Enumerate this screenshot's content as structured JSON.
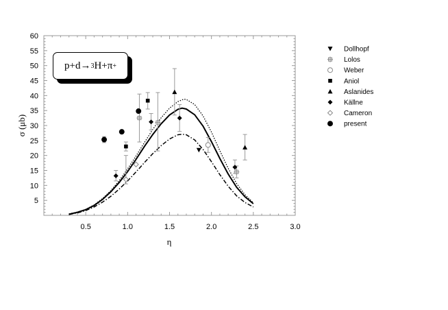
{
  "reaction": {
    "lhs": "p+d",
    "arrow": "→",
    "mass_number": "3",
    "product": "H+π",
    "charge": "+"
  },
  "chart_data": {
    "type": "scatter",
    "xlabel": "η",
    "ylabel": "σ (μb)",
    "xlim": [
      0.0,
      3.0
    ],
    "ylim": [
      0,
      60
    ],
    "x_ticks": [
      "0.5",
      "1.0",
      "1.5",
      "2.0",
      "2.5",
      "3.0"
    ],
    "y_ticks": [
      "5",
      "10",
      "15",
      "20",
      "25",
      "30",
      "35",
      "40",
      "45",
      "50",
      "55",
      "60"
    ],
    "grid": false,
    "legend_position": "outside-right",
    "series": [
      {
        "name": "Dollhopf",
        "marker": "triangle-down",
        "points": [
          [
            1.85,
            21.8
          ]
        ]
      },
      {
        "name": "Lolos",
        "marker": "cross-open",
        "points": [
          [
            1.14,
            32.5
          ],
          [
            1.36,
            31.0
          ],
          [
            2.3,
            14.5
          ]
        ]
      },
      {
        "name": "Weber",
        "marker": "circle-open",
        "points": [
          [
            1.96,
            23.5
          ]
        ]
      },
      {
        "name": "Aniol",
        "marker": "square",
        "points": [
          [
            0.98,
            23.0
          ],
          [
            1.24,
            38.3
          ]
        ]
      },
      {
        "name": "Aslanides",
        "marker": "triangle-up",
        "points": [
          [
            1.56,
            41.2
          ],
          [
            2.4,
            22.7
          ]
        ]
      },
      {
        "name": "Källne",
        "marker": "diamond",
        "points": [
          [
            0.86,
            13.2
          ],
          [
            1.28,
            31.2
          ],
          [
            1.62,
            32.5
          ],
          [
            2.28,
            16.1
          ]
        ]
      },
      {
        "name": "Cameron",
        "marker": "diamond-open",
        "points": [
          [
            0.98,
            12.0
          ],
          [
            1.1,
            17.0
          ]
        ]
      },
      {
        "name": "present",
        "marker": "circle",
        "points": [
          [
            0.72,
            25.3
          ],
          [
            0.93,
            27.9
          ],
          [
            1.13,
            34.8
          ]
        ]
      }
    ],
    "error_bars": [
      {
        "x": 0.72,
        "lo": 24.3,
        "hi": 26.3
      },
      {
        "x": 0.86,
        "lo": 11.5,
        "hi": 15.0
      },
      {
        "x": 0.98,
        "lo": 21.5,
        "hi": 24.5
      },
      {
        "x": 0.98,
        "lo": 10.5,
        "hi": 20.0
      },
      {
        "x": 1.14,
        "lo": 24.5,
        "hi": 40.5
      },
      {
        "x": 1.24,
        "lo": 35.5,
        "hi": 41.0
      },
      {
        "x": 1.28,
        "lo": 28.5,
        "hi": 34.0
      },
      {
        "x": 1.36,
        "lo": 21.5,
        "hi": 41.0
      },
      {
        "x": 1.56,
        "lo": 33.5,
        "hi": 49.0
      },
      {
        "x": 1.62,
        "lo": 28.0,
        "hi": 37.0
      },
      {
        "x": 1.96,
        "lo": 21.0,
        "hi": 26.0
      },
      {
        "x": 2.28,
        "lo": 14.0,
        "hi": 18.5
      },
      {
        "x": 2.3,
        "lo": 12.5,
        "hi": 16.5
      },
      {
        "x": 2.4,
        "lo": 18.5,
        "hi": 27.0
      }
    ],
    "curves": [
      {
        "style": "dotted",
        "points": [
          [
            0.3,
            0.5
          ],
          [
            0.4,
            1.1
          ],
          [
            0.5,
            2.0
          ],
          [
            0.6,
            3.5
          ],
          [
            0.7,
            5.6
          ],
          [
            0.8,
            8.3
          ],
          [
            0.9,
            11.6
          ],
          [
            1.0,
            15.5
          ],
          [
            1.1,
            19.8
          ],
          [
            1.2,
            24.3
          ],
          [
            1.3,
            28.7
          ],
          [
            1.4,
            32.6
          ],
          [
            1.5,
            35.8
          ],
          [
            1.6,
            38.0
          ],
          [
            1.67,
            38.8
          ],
          [
            1.7,
            38.7
          ],
          [
            1.8,
            37.0
          ],
          [
            1.9,
            33.2
          ],
          [
            2.0,
            27.8
          ],
          [
            2.1,
            21.6
          ],
          [
            2.2,
            15.7
          ],
          [
            2.3,
            10.6
          ],
          [
            2.4,
            6.9
          ],
          [
            2.5,
            4.2
          ]
        ]
      },
      {
        "style": "solid",
        "points": [
          [
            0.3,
            0.4
          ],
          [
            0.4,
            1.0
          ],
          [
            0.5,
            1.9
          ],
          [
            0.6,
            3.3
          ],
          [
            0.7,
            5.3
          ],
          [
            0.8,
            7.9
          ],
          [
            0.9,
            11.0
          ],
          [
            1.0,
            14.6
          ],
          [
            1.1,
            18.7
          ],
          [
            1.2,
            23.0
          ],
          [
            1.3,
            27.0
          ],
          [
            1.4,
            30.6
          ],
          [
            1.5,
            33.5
          ],
          [
            1.6,
            35.4
          ],
          [
            1.65,
            35.8
          ],
          [
            1.7,
            35.5
          ],
          [
            1.8,
            33.6
          ],
          [
            1.9,
            29.8
          ],
          [
            2.0,
            24.6
          ],
          [
            2.1,
            19.0
          ],
          [
            2.2,
            13.8
          ],
          [
            2.3,
            9.4
          ],
          [
            2.4,
            6.2
          ],
          [
            2.5,
            3.9
          ]
        ]
      },
      {
        "style": "dash-dot",
        "points": [
          [
            0.3,
            0.3
          ],
          [
            0.4,
            0.8
          ],
          [
            0.5,
            1.6
          ],
          [
            0.6,
            2.8
          ],
          [
            0.7,
            4.4
          ],
          [
            0.8,
            6.4
          ],
          [
            0.9,
            8.8
          ],
          [
            1.0,
            11.5
          ],
          [
            1.1,
            14.5
          ],
          [
            1.2,
            17.6
          ],
          [
            1.3,
            20.6
          ],
          [
            1.4,
            23.3
          ],
          [
            1.5,
            25.5
          ],
          [
            1.6,
            26.9
          ],
          [
            1.65,
            27.1
          ],
          [
            1.7,
            26.9
          ],
          [
            1.8,
            25.2
          ],
          [
            1.9,
            22.0
          ],
          [
            2.0,
            17.9
          ],
          [
            2.1,
            13.6
          ],
          [
            2.2,
            9.7
          ],
          [
            2.3,
            6.5
          ],
          [
            2.4,
            4.3
          ],
          [
            2.5,
            2.8
          ]
        ]
      }
    ]
  }
}
